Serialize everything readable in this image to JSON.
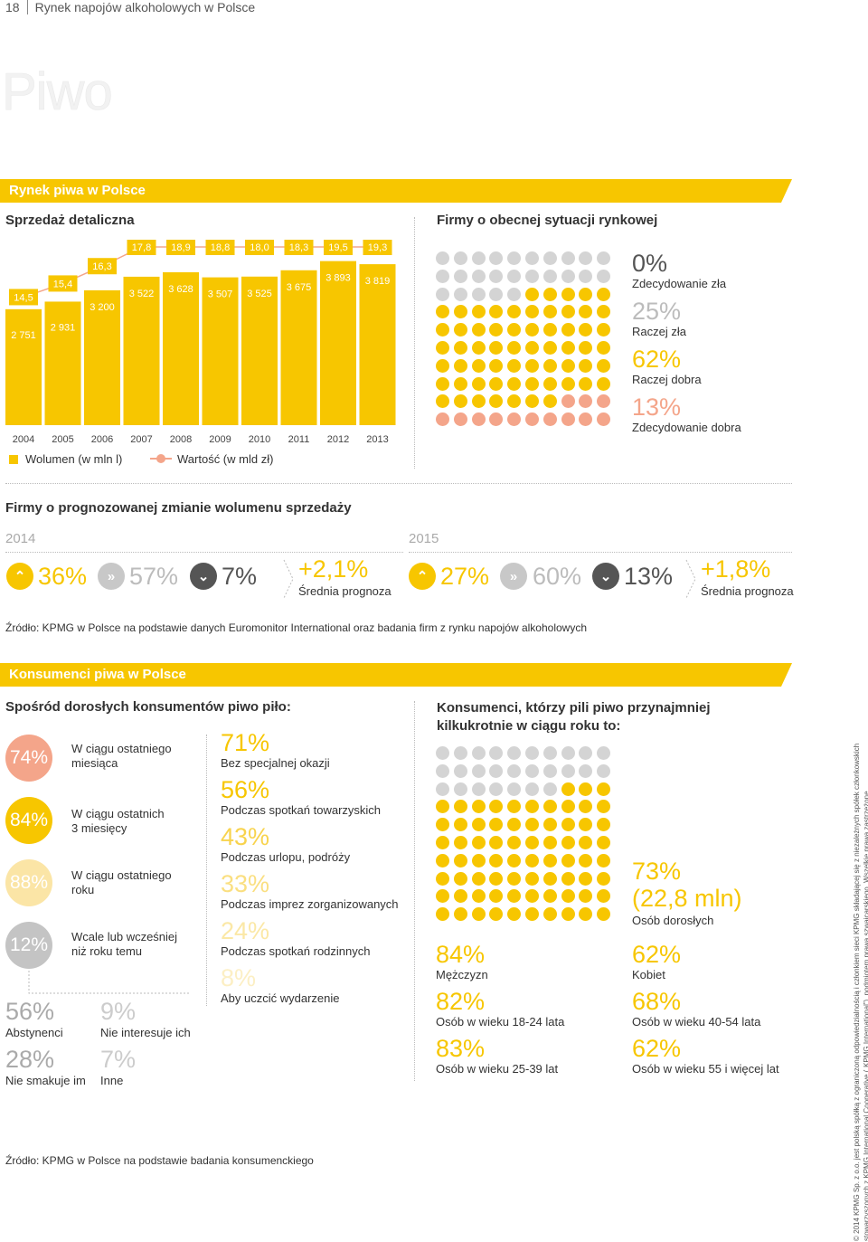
{
  "header": {
    "page_number": "18",
    "section": "Rynek napojów alkoholowych w Polsce"
  },
  "title": "Piwo",
  "section1": {
    "band": "Rynek piwa w Polsce"
  },
  "sales": {
    "heading": "Sprzedaż detaliczna",
    "legend_volume": "Wolumen (w mln l)",
    "legend_value": "Wartość (w mld zł)"
  },
  "chart_data": {
    "type": "bar",
    "title": "Sprzedaż detaliczna",
    "categories": [
      "2004",
      "2005",
      "2006",
      "2007",
      "2008",
      "2009",
      "2010",
      "2011",
      "2012",
      "2013"
    ],
    "series": [
      {
        "name": "Wolumen (w mln l)",
        "type": "bar",
        "values": [
          2751,
          2931,
          3200,
          3522,
          3628,
          3507,
          3525,
          3675,
          3893,
          3819
        ],
        "labels": [
          "2 751",
          "2 931",
          "3 200",
          "3 522",
          "3 628",
          "3 507",
          "3 525",
          "3 675",
          "3 893",
          "3 819"
        ]
      },
      {
        "name": "Wartość (w mld zł)",
        "type": "line",
        "values": [
          14.5,
          15.4,
          16.3,
          17.8,
          18.9,
          18.8,
          18.0,
          18.3,
          19.5,
          19.3
        ],
        "labels": [
          "14,5",
          "15,4",
          "16,3",
          "17,8",
          "18,9",
          "18,8",
          "18,0",
          "18,3",
          "19,5",
          "19,3"
        ]
      }
    ],
    "ylim": [
      0,
      4400
    ],
    "colors": {
      "bar": "#f7c600",
      "line": "#f4a58a",
      "value_bg": "#f7c600"
    }
  },
  "current": {
    "heading": "Firmy o obecnej sytuacji rynkowej",
    "dots": {
      "grey": 25,
      "yellow": 62,
      "salmon": 13
    },
    "items": [
      {
        "pct": "0%",
        "label": "Zdecydowanie zła"
      },
      {
        "pct": "25%",
        "label": "Raczej zła"
      },
      {
        "pct": "62%",
        "label": "Raczej dobra"
      },
      {
        "pct": "13%",
        "label": "Zdecydowanie dobra"
      }
    ]
  },
  "forecast": {
    "heading": "Firmy o prognozowanej zmianie wolumenu sprzedaży",
    "y2014": {
      "year": "2014",
      "up": "36%",
      "flat": "57%",
      "down": "7%",
      "avg": "+2,1%",
      "avg_label": "Średnia prognoza"
    },
    "y2015": {
      "year": "2015",
      "up": "27%",
      "flat": "60%",
      "down": "13%",
      "avg": "+1,8%",
      "avg_label": "Średnia prognoza"
    }
  },
  "source1": "Źródło: KPMG w Polsce na podstawie danych Euromonitor International oraz badania firm z rynku napojów alkoholowych",
  "section2": {
    "band": "Konsumenci piwa w Polsce"
  },
  "consumers": {
    "heading": "Spośród dorosłych konsumentów piwo piło:",
    "circles": [
      {
        "pct": "74%",
        "label1": "W ciągu ostatniego",
        "label2": "miesiąca"
      },
      {
        "pct": "84%",
        "label1": "W ciągu ostatnich",
        "label2": "3 miesięcy"
      },
      {
        "pct": "88%",
        "label1": "W ciągu ostatniego",
        "label2": "roku"
      },
      {
        "pct": "12%",
        "label1": "Wcale lub wcześniej",
        "label2": "niż roku temu"
      }
    ],
    "occasions": [
      {
        "pct": "71%",
        "label": "Bez specjalnej okazji"
      },
      {
        "pct": "56%",
        "label": "Podczas spotkań towarzyskich"
      },
      {
        "pct": "43%",
        "label": "Podczas urlopu, podróży"
      },
      {
        "pct": "33%",
        "label": "Podczas imprez zorganizowanych"
      },
      {
        "pct": "24%",
        "label": "Podczas spotkań rodzinnych"
      },
      {
        "pct": "8%",
        "label": "Aby uczcić wydarzenie"
      }
    ],
    "reasons": [
      {
        "pct": "56%",
        "label": "Abstynenci"
      },
      {
        "pct": "9%",
        "label": "Nie interesuje ich"
      },
      {
        "pct": "28%",
        "label": "Nie smakuje im"
      },
      {
        "pct": "7%",
        "label": "Inne"
      }
    ]
  },
  "frequent": {
    "heading1": "Konsumenci, którzy pili piwo przynajmniej",
    "heading2": "kilkukrotnie w ciągu roku to:",
    "dots": {
      "grey": 27,
      "yellow": 73
    },
    "main_pct": "73%",
    "main_sub": "(22,8 mln)",
    "main_label": "Osób dorosłych",
    "left": [
      {
        "pct": "84%",
        "label": "Mężczyzn"
      },
      {
        "pct": "82%",
        "label": "Osób w wieku 18-24 lata"
      },
      {
        "pct": "83%",
        "label": "Osób w wieku 25-39 lat"
      }
    ],
    "right": [
      {
        "pct": "62%",
        "label": "Kobiet"
      },
      {
        "pct": "68%",
        "label": "Osób w wieku 40-54 lata"
      },
      {
        "pct": "62%",
        "label": "Osób w wieku 55 i więcej lat"
      }
    ]
  },
  "source2": "Źródło: KPMG w Polsce na podstawie badania konsumenckiego",
  "footer": "© 2014 KPMG Sp. z o.o. jest polską spółką z ograniczoną odpowiedzialnością i członkiem sieci KPMG składającej się z niezależnych spółek członkowskich stowarzyszonych z KPMG International Cooperative („KPMG International”), podmiotem prawa szwajcarskiego. Wszelkie prawa zastrzeżone."
}
